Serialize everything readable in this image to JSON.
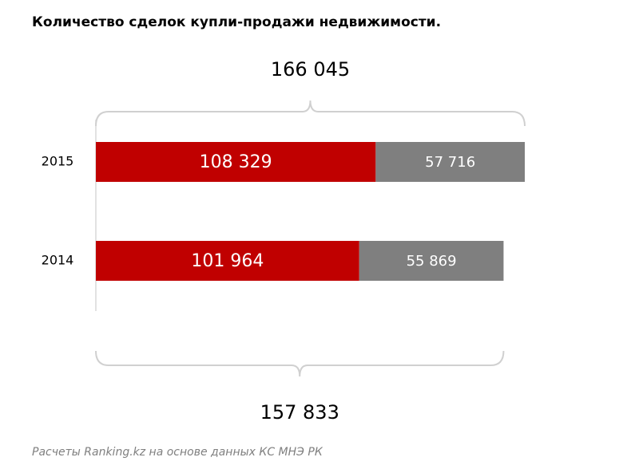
{
  "chart_data": {
    "type": "stacked-barh",
    "title": "Количество  сделок  купли-продажи  недвижимости.",
    "categories": [
      "2015",
      "2014"
    ],
    "series": [
      {
        "color": "#c00000",
        "values": [
          108329,
          101964
        ],
        "value_labels": [
          "108  329",
          "101  964"
        ]
      },
      {
        "color": "#7f7f7f",
        "values": [
          57716,
          55869
        ],
        "value_labels": [
          "57 716",
          "55 869"
        ]
      }
    ],
    "totals": {
      "values": [
        166045,
        157833
      ],
      "value_labels": [
        "166 045",
        "157  833"
      ]
    },
    "source": "Расчеты Ranking.kz на основе данных  КС МНЭ РК"
  }
}
